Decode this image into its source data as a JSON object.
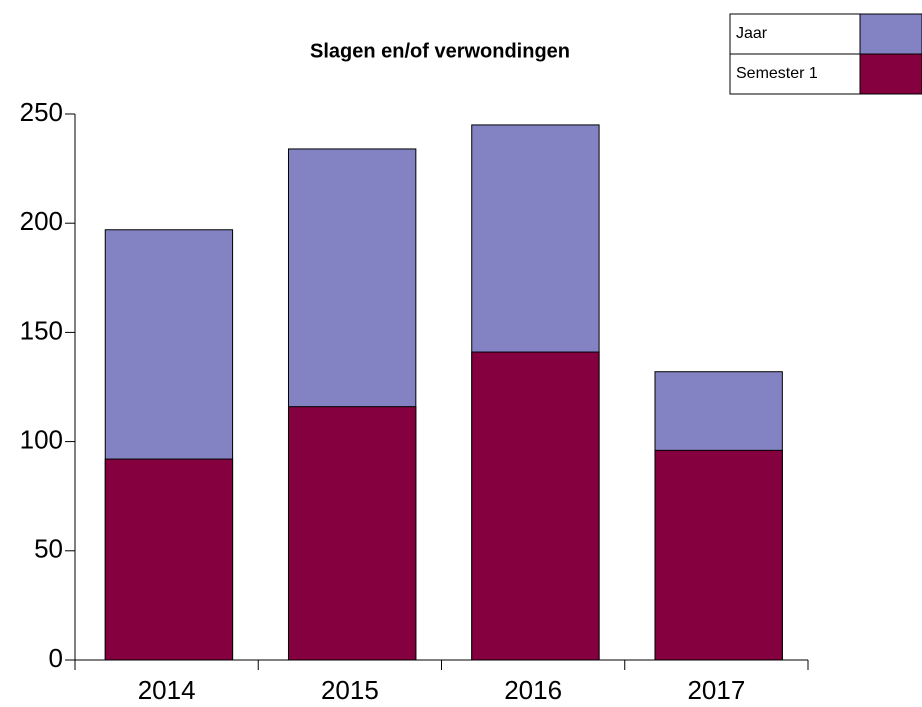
{
  "chart_data": {
    "type": "bar",
    "title": "Slagen en/of verwondingen",
    "categories": [
      "2014",
      "2015",
      "2016",
      "2017"
    ],
    "series": [
      {
        "name": "Jaar",
        "color": "#8383c3",
        "values": [
          197,
          234,
          245,
          132
        ]
      },
      {
        "name": "Semester 1",
        "color": "#84003e",
        "values": [
          92,
          116,
          141,
          96
        ]
      }
    ],
    "ylim": [
      0,
      250
    ],
    "yticks": [
      0,
      50,
      100,
      150,
      200,
      250
    ],
    "grid": false,
    "legend": "top-right"
  }
}
